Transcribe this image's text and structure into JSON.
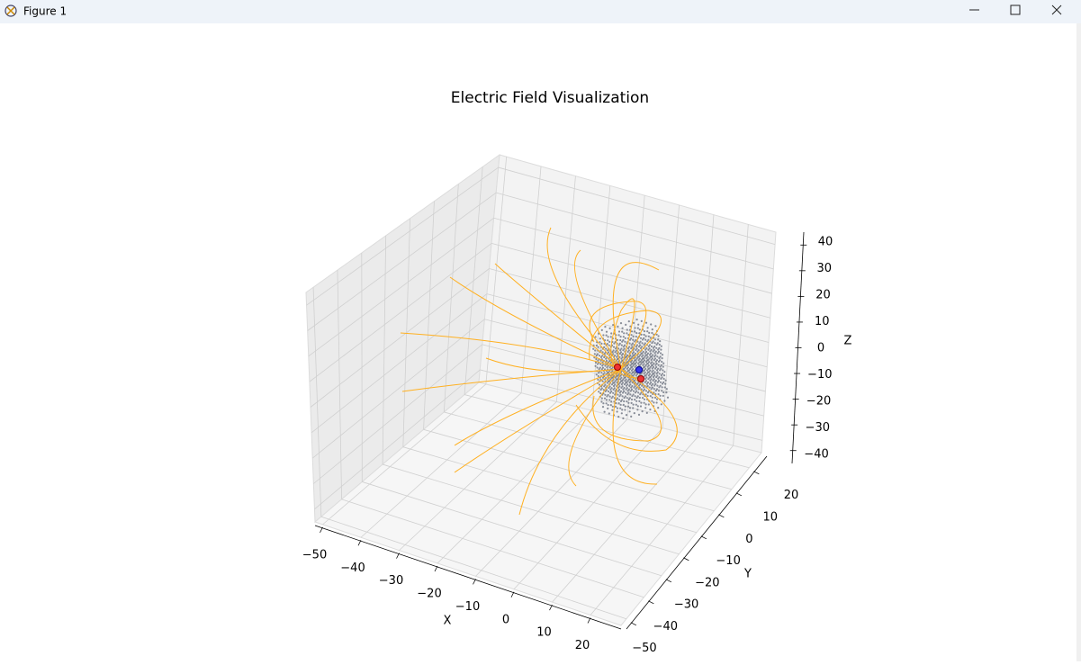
{
  "window": {
    "title": "Figure 1"
  },
  "chart_data": {
    "type": "quiver3d",
    "title": "Electric Field Visualization",
    "xlabel": "X",
    "ylabel": "Y",
    "zlabel": "Z",
    "xlim": [
      -52,
      28
    ],
    "ylim": [
      -53,
      27
    ],
    "zlim": [
      -45,
      45
    ],
    "xticks": [
      {
        "value": -50,
        "label": "−50"
      },
      {
        "value": -40,
        "label": "−40"
      },
      {
        "value": -30,
        "label": "−30"
      },
      {
        "value": -20,
        "label": "−20"
      },
      {
        "value": -10,
        "label": "−10"
      },
      0,
      10,
      20
    ],
    "yticks": [
      {
        "value": -50,
        "label": "−50"
      },
      {
        "value": -40,
        "label": "−40"
      },
      {
        "value": -30,
        "label": "−30"
      },
      {
        "value": -20,
        "label": "−20"
      },
      {
        "value": -10,
        "label": "−10"
      },
      0,
      10,
      20
    ],
    "zticks": [
      {
        "value": -40,
        "label": "−40"
      },
      {
        "value": -30,
        "label": "−30"
      },
      {
        "value": -20,
        "label": "−20"
      },
      {
        "value": -10,
        "label": "−10"
      },
      0,
      10,
      20,
      30,
      40
    ],
    "grid": true
  }
}
